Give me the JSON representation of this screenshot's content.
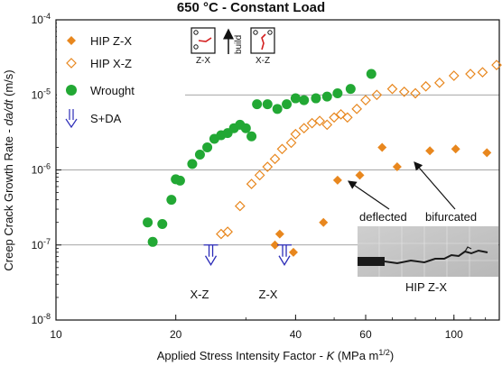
{
  "chart_data": {
    "type": "scatter",
    "title": "650 °C  -  Constant Load",
    "xlabel_main": "Applied Stress Intensity Factor - ",
    "xlabel_var": "K",
    "xlabel_unit_pre": "(MPa m",
    "xlabel_unit_exp": "1/2",
    "xlabel_unit_post": ")",
    "ylabel_main": "Creep Crack Growth Rate - ",
    "ylabel_var": "da/dt",
    "ylabel_unit": "(m/s)",
    "x_scale": "log",
    "y_scale": "log",
    "xlim": [
      10,
      130
    ],
    "ylim": [
      1e-08,
      0.0001
    ],
    "x_ticks": [
      {
        "value": 10,
        "label": "10"
      },
      {
        "value": 20,
        "label": "20"
      },
      {
        "value": 40,
        "label": "40"
      },
      {
        "value": 60,
        "label": "60"
      },
      {
        "value": 100,
        "label": "100"
      }
    ],
    "y_ticks": [
      {
        "value": 1e-08,
        "base": "10",
        "exp": "-8"
      },
      {
        "value": 1e-07,
        "base": "10",
        "exp": "-7"
      },
      {
        "value": 1e-06,
        "base": "10",
        "exp": "-6"
      },
      {
        "value": 1e-05,
        "base": "10",
        "exp": "-5"
      },
      {
        "value": 0.0001,
        "base": "10",
        "exp": "-4"
      }
    ],
    "grid": "horizontal at 1e-7, 1e-6, 1e-5",
    "legend_position": "top-left",
    "series": [
      {
        "name": "HIP Z-X",
        "marker": "diamond-filled",
        "color": "#e8871e",
        "points": [
          [
            35.5,
            1e-07
          ],
          [
            36.5,
            1.4e-07
          ],
          [
            39.5,
            8e-08
          ],
          [
            47,
            2e-07
          ],
          [
            51,
            7.3e-07
          ],
          [
            58,
            8.5e-07
          ],
          [
            66,
            2e-06
          ],
          [
            72,
            1.1e-06
          ],
          [
            87,
            1.8e-06
          ],
          [
            101,
            1.9e-06
          ],
          [
            121,
            1.7e-06
          ]
        ]
      },
      {
        "name": "HIP X-Z",
        "marker": "diamond-open",
        "color": "#e8871e",
        "points": [
          [
            26,
            1.4e-07
          ],
          [
            27,
            1.5e-07
          ],
          [
            29,
            3.3e-07
          ],
          [
            31,
            6.5e-07
          ],
          [
            32.5,
            8.5e-07
          ],
          [
            34,
            1.1e-06
          ],
          [
            35.5,
            1.4e-06
          ],
          [
            37,
            1.9e-06
          ],
          [
            39,
            2.3e-06
          ],
          [
            40,
            3e-06
          ],
          [
            42,
            3.6e-06
          ],
          [
            44,
            4.2e-06
          ],
          [
            46,
            4.5e-06
          ],
          [
            48,
            4e-06
          ],
          [
            50,
            5e-06
          ],
          [
            52,
            5.5e-06
          ],
          [
            54,
            5e-06
          ],
          [
            57,
            6.5e-06
          ],
          [
            60,
            8.5e-06
          ],
          [
            64,
            1e-05
          ],
          [
            70,
            1.2e-05
          ],
          [
            75,
            1.1e-05
          ],
          [
            80,
            1.05e-05
          ],
          [
            85,
            1.3e-05
          ],
          [
            92,
            1.45e-05
          ],
          [
            100,
            1.8e-05
          ],
          [
            110,
            1.9e-05
          ],
          [
            118,
            2e-05
          ],
          [
            128,
            2.5e-05
          ]
        ]
      },
      {
        "name": "Wrought",
        "marker": "circle-filled",
        "color": "#22a834",
        "points": [
          [
            17,
            2e-07
          ],
          [
            17.5,
            1.1e-07
          ],
          [
            18.5,
            1.9e-07
          ],
          [
            19.5,
            4e-07
          ],
          [
            20,
            7.5e-07
          ],
          [
            20.5,
            7.2e-07
          ],
          [
            22,
            1.2e-06
          ],
          [
            23,
            1.6e-06
          ],
          [
            24,
            2e-06
          ],
          [
            25,
            2.6e-06
          ],
          [
            26,
            2.9e-06
          ],
          [
            27,
            3.1e-06
          ],
          [
            28,
            3.6e-06
          ],
          [
            29,
            4e-06
          ],
          [
            30,
            3.6e-06
          ],
          [
            31,
            2.8e-06
          ],
          [
            32,
            7.5e-06
          ],
          [
            34,
            7.5e-06
          ],
          [
            36,
            6.5e-06
          ],
          [
            38,
            7.5e-06
          ],
          [
            40,
            9e-06
          ],
          [
            42,
            8.5e-06
          ],
          [
            45,
            9e-06
          ],
          [
            48,
            9.5e-06
          ],
          [
            51,
            1.05e-05
          ],
          [
            55,
            1.2e-05
          ],
          [
            62,
            1.9e-05
          ]
        ]
      },
      {
        "name": "S+DA",
        "marker": "arrow-down-open",
        "color": "#2c2cb8",
        "points": [
          [
            24.5,
            1e-07
          ],
          [
            37.5,
            1e-07
          ]
        ]
      }
    ],
    "annotations": {
      "xz_label": "X-Z",
      "zx_label": "Z-X",
      "deflected": "deflected",
      "bifurcated": "bifurcated",
      "inset_caption": "HIP Z-X",
      "orient_zx": "Z-X",
      "orient_xz": "X-Z",
      "build": "build"
    }
  }
}
